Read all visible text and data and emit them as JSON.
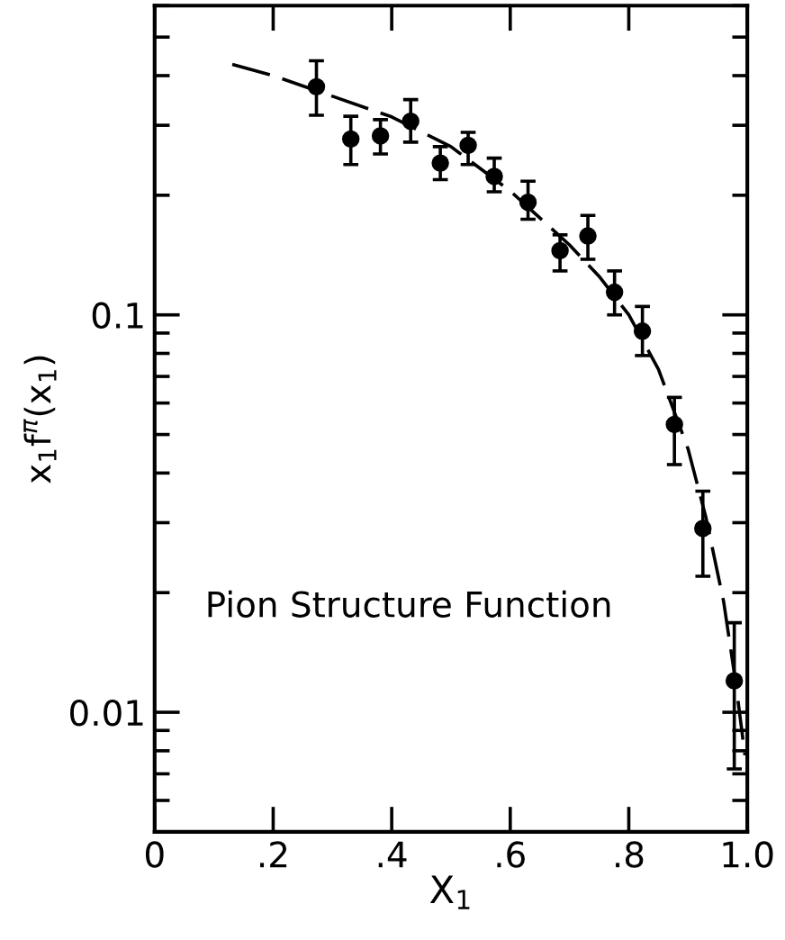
{
  "chart_data": {
    "type": "scatter",
    "xlabel": "X$_{1}$",
    "ylabel": "x$_{1}$f$^{π}$(x$_{1}$)",
    "annotations": [
      "Pion Structure Function"
    ],
    "log": "y",
    "xlim": [
      0,
      1.0
    ],
    "ylim": [
      0.005,
      0.6
    ],
    "xticks": [
      0,
      {
        "value": 0.2,
        "label": ".2"
      },
      {
        "value": 0.4,
        "label": ".4"
      },
      {
        "value": 0.6,
        "label": ".6"
      },
      {
        "value": 0.8,
        "label": ".8"
      },
      {
        "value": 1.0,
        "label": "1.0"
      }
    ],
    "yticks": [
      0.01,
      0.1
    ],
    "grid": false,
    "legend": false,
    "series": [
      {
        "color": "#000000",
        "marker": "circle",
        "x": [
          0.273,
          0.331,
          0.381,
          0.432,
          0.482,
          0.529,
          0.573,
          0.63,
          0.684,
          0.731,
          0.776,
          0.823,
          0.877,
          0.925,
          0.978
        ],
        "values": [
          0.375,
          0.277,
          0.282,
          0.307,
          0.241,
          0.267,
          0.223,
          0.192,
          0.145,
          0.158,
          0.114,
          0.091,
          0.053,
          0.029,
          0.012
        ],
        "errors": [
          [
            0.318,
            0.436
          ],
          [
            0.239,
            0.316
          ],
          [
            0.254,
            0.31
          ],
          [
            0.272,
            0.348
          ],
          [
            0.219,
            0.265
          ],
          [
            0.239,
            0.288
          ],
          [
            0.204,
            0.248
          ],
          [
            0.174,
            0.217
          ],
          [
            0.129,
            0.159
          ],
          [
            0.138,
            0.178
          ],
          [
            0.1,
            0.129
          ],
          [
            0.079,
            0.105
          ],
          [
            0.042,
            0.062
          ],
          [
            0.022,
            0.036
          ],
          [
            0.0072,
            0.0168
          ]
        ]
      },
      {
        "type": "line",
        "color": "#000000",
        "line_style": "dashed",
        "marker": "none",
        "x": [
          0.131,
          0.2,
          0.3,
          0.4,
          0.5,
          0.6,
          0.7,
          0.75,
          0.8,
          0.85,
          0.9,
          0.93,
          0.96,
          0.98,
          0.996
        ],
        "values": [
          0.427,
          0.4,
          0.355,
          0.315,
          0.265,
          0.205,
          0.15,
          0.125,
          0.1,
          0.073,
          0.046,
          0.031,
          0.019,
          0.012,
          0.0078
        ]
      }
    ]
  }
}
